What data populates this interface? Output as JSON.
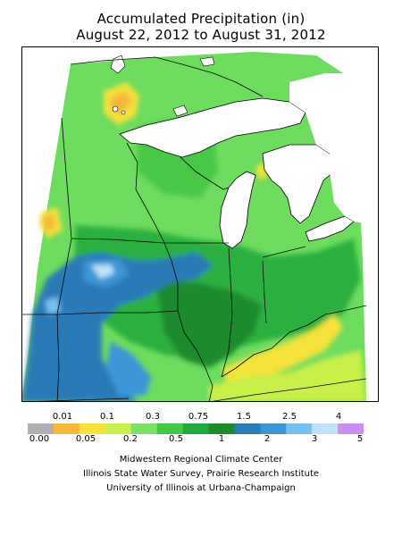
{
  "title_line1": "Accumulated Precipitation (in)",
  "title_line2": "August 22, 2012 to August 31, 2012",
  "legend": {
    "top_labels": [
      "0.01",
      "0.1",
      "0.3",
      "0.75",
      "1.5",
      "2.5",
      "4"
    ],
    "bottom_labels": [
      "0.00",
      "0.05",
      "0.2",
      "0.5",
      "1",
      "2",
      "3",
      "5"
    ],
    "colors": [
      "#b0b0b0",
      "#f5b83a",
      "#f5e23a",
      "#c8f04a",
      "#7ee066",
      "#46c846",
      "#22a83c",
      "#1e8a2e",
      "#2c7ab8",
      "#3c96d8",
      "#78c0f0",
      "#c0e2f8",
      "#c890f0"
    ]
  },
  "credits": [
    "Midwestern Regional Climate Center",
    "Illinois State Water Survey, Prairie Research Institute",
    "University of Illinois at Urbana-Champaign"
  ]
}
